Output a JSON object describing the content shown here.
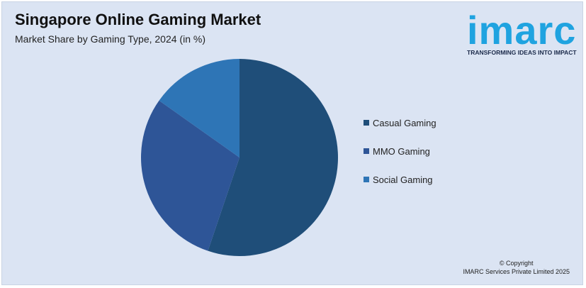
{
  "header": {
    "title": "Singapore Online Gaming Market",
    "subtitle": "Market Share by Gaming Type, 2024 (in %)"
  },
  "logo": {
    "word": "imarc",
    "tagline": "TRANSFORMING IDEAS INTO IMPACT",
    "color": "#1fa3e0"
  },
  "chart_data": {
    "type": "pie",
    "title": "Singapore Online Gaming Market",
    "subtitle": "Market Share by Gaming Type, 2024 (in %)",
    "legend_position": "right",
    "slices": [
      {
        "label": "Casual Gaming",
        "value": 55.2,
        "color": "#1f4e79"
      },
      {
        "label": "MMO Gaming",
        "value": 29.6,
        "color": "#2e5597"
      },
      {
        "label": "Social Gaming",
        "value": 15.2,
        "color": "#2e75b6"
      }
    ]
  },
  "footer": {
    "copyright_line1": "© Copyright",
    "copyright_line2": "IMARC Services Private Limited 2025"
  }
}
